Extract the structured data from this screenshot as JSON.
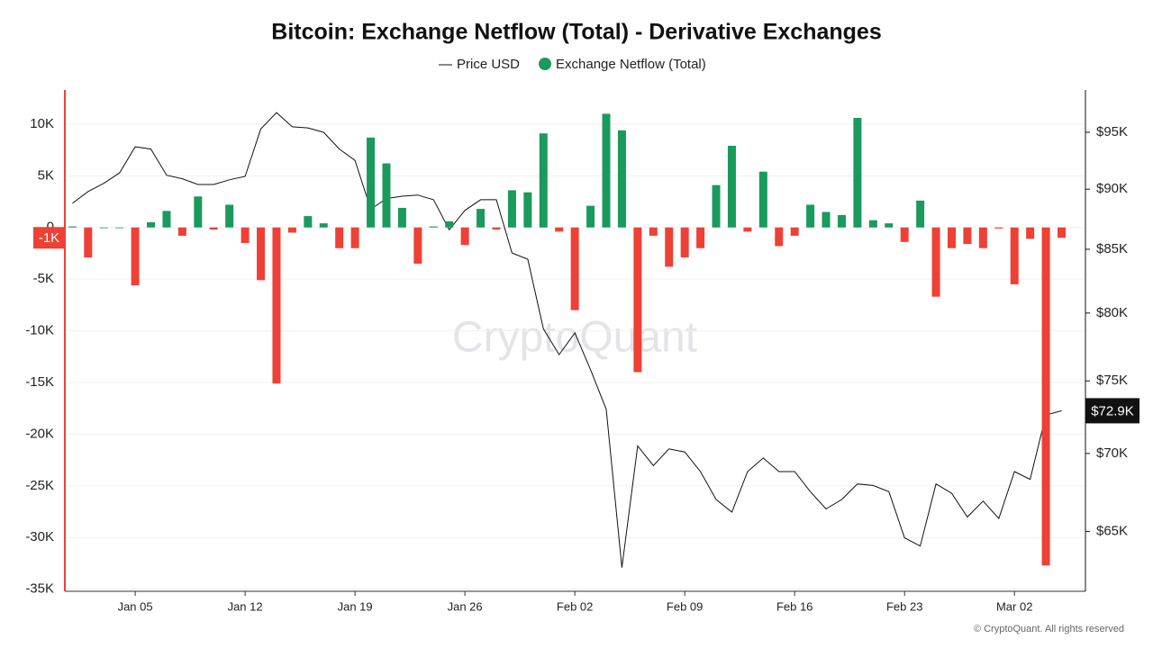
{
  "chart_data": {
    "type": "bar-line",
    "title": "Bitcoin: Exchange Netflow (Total) - Derivative Exchanges",
    "categories": [
      null,
      null,
      null,
      null,
      "Jan 05",
      null,
      null,
      null,
      null,
      null,
      null,
      "Jan 12",
      null,
      null,
      null,
      null,
      null,
      null,
      "Jan 19",
      null,
      null,
      null,
      null,
      null,
      null,
      "Jan 26",
      null,
      null,
      null,
      null,
      null,
      null,
      "Feb 02",
      null,
      null,
      null,
      null,
      null,
      null,
      "Feb 09",
      null,
      null,
      null,
      null,
      null,
      null,
      "Feb 16",
      null,
      null,
      null,
      null,
      null,
      null,
      "Feb 23",
      null,
      null,
      null,
      null,
      null,
      null,
      "Mar 02",
      null,
      null,
      null
    ],
    "series": [
      {
        "name": "Price USD",
        "type": "line",
        "axis": "y2",
        "color": "#111111",
        "values": [
          88800,
          89800,
          90500,
          91400,
          93700,
          93500,
          91200,
          90900,
          90400,
          90400,
          90800,
          91100,
          95300,
          96800,
          95500,
          95400,
          95000,
          93500,
          92500,
          88300,
          89200,
          89400,
          89500,
          89100,
          86600,
          88200,
          89100,
          89100,
          84700,
          84200,
          78800,
          76900,
          78500,
          75800,
          73000,
          62800,
          70500,
          69200,
          70300,
          70100,
          68800,
          67000,
          66200,
          68800,
          69700,
          68800,
          68800,
          67500,
          66400,
          67000,
          68000,
          67900,
          67500,
          64600,
          64100,
          68000,
          67400,
          65900,
          66900,
          65800,
          68800,
          68300,
          72600,
          72900
        ]
      },
      {
        "name": "Exchange Netflow (Total)",
        "type": "bar",
        "color": "#1a9a5c",
        "negative_color": "#ee4035",
        "values": [
          100,
          -2900,
          0,
          0,
          -5600,
          500,
          1600,
          -800,
          3000,
          -200,
          2200,
          -1500,
          -5100,
          -15100,
          -500,
          1100,
          400,
          -2000,
          -2000,
          8700,
          6200,
          1900,
          -3500,
          100,
          600,
          -1700,
          1800,
          -200,
          3600,
          3400,
          9100,
          -400,
          -8000,
          2100,
          11000,
          9400,
          -14000,
          -800,
          -3800,
          -2900,
          -2000,
          4100,
          7900,
          -400,
          5400,
          -1800,
          -800,
          2200,
          1500,
          1200,
          10600,
          700,
          400,
          -1400,
          2600,
          -6700,
          -2000,
          -1600,
          -2000,
          -100,
          -5500,
          -1100,
          -32700,
          -1000
        ]
      }
    ],
    "ylim": [
      -35200,
      13300
    ],
    "yticks": [
      {
        "value": -35000,
        "label": "-35K"
      },
      {
        "value": -30000,
        "label": "-30K"
      },
      {
        "value": -25000,
        "label": "-25K"
      },
      {
        "value": -20000,
        "label": "-20K"
      },
      {
        "value": -15000,
        "label": "-15K"
      },
      {
        "value": -10000,
        "label": "-10K"
      },
      {
        "value": -5000,
        "label": "-5K"
      },
      0,
      {
        "value": 5000,
        "label": "5K"
      },
      {
        "value": 10000,
        "label": "10K"
      }
    ],
    "y2lim": [
      61400,
      98900
    ],
    "y2log": true,
    "y2ticks": [
      {
        "value": 65000,
        "label": "$65K"
      },
      {
        "value": 70000,
        "label": "$70K"
      },
      {
        "value": 75000,
        "label": "$75K"
      },
      {
        "value": 80000,
        "label": "$80K"
      },
      {
        "value": 85000,
        "label": "$85K"
      },
      {
        "value": 90000,
        "label": "$90K"
      },
      {
        "value": 95000,
        "label": "$95K"
      }
    ],
    "grid": true,
    "annotations": [
      "-1K",
      "$72.9K"
    ],
    "watermark": "CryptoQuant",
    "copyright": "© CryptoQuant. All rights reserved"
  }
}
